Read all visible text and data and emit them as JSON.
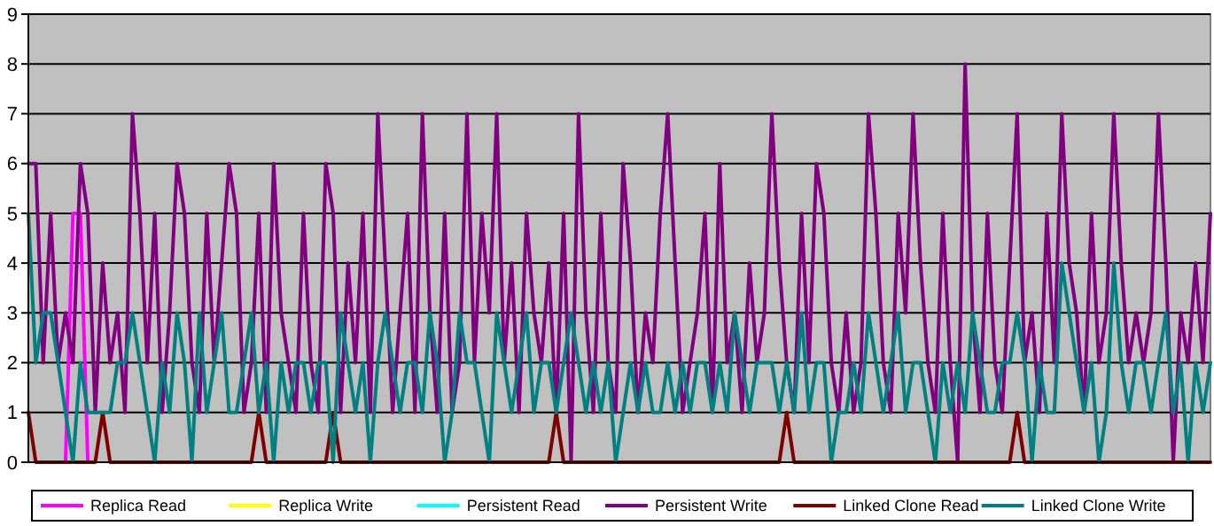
{
  "chart_data": {
    "type": "line",
    "categories": [
      null,
      null,
      null,
      null,
      null,
      null,
      null,
      null,
      null,
      null,
      null,
      null,
      null,
      null,
      null,
      null,
      null,
      null,
      null,
      null,
      null,
      null,
      null,
      null,
      null,
      null,
      null,
      null,
      null,
      null,
      null,
      null,
      null,
      null,
      null,
      null,
      null,
      null,
      null,
      null,
      null,
      null,
      null,
      null,
      null,
      null,
      null,
      null,
      null,
      null,
      null,
      null,
      null,
      null,
      null,
      null,
      null,
      null,
      null,
      null,
      null,
      null,
      null,
      null,
      null,
      null,
      null,
      null,
      null,
      null,
      null,
      null,
      null,
      null,
      null,
      null,
      null,
      null,
      null,
      null,
      null,
      null,
      null,
      null,
      null,
      null,
      null,
      null,
      null,
      null,
      null,
      null,
      null,
      null,
      null,
      null,
      null,
      null,
      null,
      null,
      null,
      null,
      null,
      null,
      null,
      null,
      null,
      null,
      null,
      null,
      null,
      null,
      null,
      null,
      null,
      null,
      null,
      null,
      null,
      null,
      null,
      null,
      null,
      null,
      null,
      null,
      null,
      null,
      null,
      null,
      null,
      null,
      null,
      null,
      null,
      null,
      null,
      null,
      null,
      null,
      null,
      null,
      null,
      null,
      null,
      null,
      null,
      null,
      null,
      null,
      null,
      null,
      null,
      null,
      null,
      null,
      null,
      null,
      null,
      null
    ],
    "ylim": [
      0,
      9
    ],
    "yticks": [
      0,
      1,
      2,
      3,
      4,
      5,
      6,
      7,
      8,
      9
    ],
    "grid": "y",
    "legend": "bottom",
    "tick_labels": "y",
    "series": [
      {
        "name": "Replica Read",
        "color": "#ff00ff",
        "values": [
          null,
          null,
          null,
          null,
          null,
          0,
          5,
          5,
          0,
          null,
          null,
          null,
          null,
          null,
          null,
          null,
          null,
          null,
          null,
          null,
          null,
          null,
          null,
          null,
          null,
          null,
          null,
          null,
          null,
          null,
          null,
          null,
          null,
          null,
          null,
          null,
          null,
          null,
          null,
          null,
          null,
          null,
          null,
          null,
          null,
          null,
          null,
          null,
          null,
          null,
          null,
          null,
          null,
          null,
          null,
          null,
          null,
          null,
          null,
          null,
          null,
          null,
          null,
          null,
          null,
          null,
          null,
          null,
          null,
          null,
          null,
          null,
          null,
          null,
          null,
          null,
          null,
          null,
          null,
          null,
          null,
          null,
          null,
          null,
          null,
          null,
          null,
          null,
          null,
          null,
          null,
          null,
          null,
          null,
          null,
          null,
          null,
          null,
          null,
          null,
          null,
          null,
          null,
          null,
          null,
          null,
          null,
          null,
          null,
          null,
          null,
          null,
          null,
          null,
          null,
          null,
          null,
          null,
          null,
          null,
          null,
          null,
          null,
          null,
          null,
          null,
          null,
          null,
          null,
          null,
          null,
          null,
          null,
          null,
          null,
          null,
          null,
          null,
          null,
          null,
          null,
          null,
          null,
          null,
          null,
          null,
          null,
          null,
          null,
          null,
          null,
          null,
          null,
          null,
          null,
          null,
          null,
          null,
          null,
          null
        ]
      },
      {
        "name": "Replica Write",
        "color": "#ffff00",
        "values": [
          null,
          null,
          null,
          null,
          null,
          null,
          null,
          null,
          null,
          null,
          null,
          null,
          null,
          null,
          null,
          null,
          null,
          null,
          null,
          null,
          null,
          null,
          null,
          null,
          null,
          null,
          null,
          null,
          null,
          null,
          null,
          null,
          null,
          null,
          null,
          null,
          null,
          null,
          null,
          null,
          null,
          null,
          null,
          null,
          null,
          null,
          null,
          null,
          null,
          null,
          null,
          null,
          null,
          null,
          null,
          null,
          null,
          null,
          null,
          null,
          null,
          null,
          null,
          null,
          null,
          null,
          null,
          null,
          null,
          null,
          null,
          null,
          null,
          null,
          null,
          null,
          null,
          null,
          null,
          null,
          null,
          null,
          null,
          null,
          null,
          null,
          null,
          null,
          null,
          null,
          null,
          null,
          null,
          null,
          null,
          null,
          null,
          null,
          null,
          null,
          null,
          null,
          null,
          null,
          null,
          null,
          null,
          null,
          null,
          null,
          null,
          null,
          null,
          null,
          null,
          null,
          null,
          null,
          null,
          null,
          null,
          null,
          null,
          null,
          null,
          null,
          null,
          null,
          null,
          null,
          null,
          null,
          null,
          null,
          null,
          null,
          null,
          null,
          null,
          null,
          null,
          null,
          null,
          null,
          null,
          null,
          null,
          null,
          null,
          null,
          null,
          null,
          null,
          null,
          null,
          null,
          null,
          null,
          null,
          null
        ]
      },
      {
        "name": "Persistent Read",
        "color": "#00ffff",
        "values": [
          null,
          null,
          null,
          null,
          null,
          null,
          null,
          null,
          null,
          null,
          null,
          null,
          null,
          null,
          null,
          null,
          null,
          null,
          null,
          null,
          null,
          null,
          null,
          null,
          null,
          null,
          null,
          null,
          null,
          null,
          null,
          null,
          null,
          null,
          null,
          null,
          null,
          null,
          null,
          null,
          null,
          null,
          null,
          null,
          null,
          null,
          null,
          null,
          null,
          null,
          null,
          null,
          null,
          null,
          null,
          null,
          null,
          null,
          null,
          null,
          null,
          null,
          null,
          null,
          null,
          null,
          null,
          null,
          null,
          null,
          null,
          null,
          null,
          null,
          null,
          null,
          null,
          null,
          null,
          null,
          null,
          null,
          null,
          null,
          null,
          null,
          null,
          null,
          null,
          null,
          null,
          null,
          null,
          null,
          null,
          null,
          null,
          null,
          null,
          null,
          null,
          null,
          null,
          null,
          null,
          null,
          null,
          null,
          null,
          null,
          null,
          null,
          null,
          null,
          null,
          null,
          null,
          null,
          null,
          null,
          null,
          null,
          null,
          null,
          null,
          null,
          null,
          null,
          null,
          null,
          null,
          null,
          null,
          null,
          null,
          null,
          null,
          null,
          null,
          null,
          null,
          null,
          null,
          null,
          null,
          null,
          null,
          null,
          null,
          null,
          null,
          null,
          null,
          null,
          null,
          null,
          null,
          null,
          null,
          null
        ]
      },
      {
        "name": "Persistent Write",
        "color": "#800080",
        "values": [
          6,
          6,
          2,
          5,
          2,
          3,
          2,
          6,
          5,
          1,
          4,
          2,
          3,
          1,
          7,
          5,
          2,
          5,
          1,
          3,
          6,
          5,
          2,
          1,
          5,
          2,
          4,
          6,
          5,
          1,
          2,
          5,
          1,
          6,
          3,
          2,
          1,
          5,
          2,
          1,
          6,
          5,
          1,
          4,
          2,
          5,
          1,
          7,
          4,
          1,
          3,
          5,
          1,
          7,
          3,
          1,
          5,
          1,
          2,
          7,
          2,
          5,
          3,
          7,
          2,
          4,
          1,
          5,
          3,
          2,
          4,
          1,
          5,
          0,
          7,
          3,
          1,
          5,
          2,
          1,
          6,
          4,
          1,
          3,
          2,
          5,
          7,
          4,
          1,
          2,
          3,
          5,
          1,
          6,
          2,
          3,
          1,
          4,
          2,
          3,
          7,
          4,
          2,
          1,
          5,
          2,
          6,
          5,
          2,
          1,
          3,
          1,
          2,
          7,
          5,
          2,
          1,
          5,
          3,
          7,
          4,
          2,
          1,
          5,
          2,
          0,
          8,
          3,
          1,
          5,
          2,
          1,
          4,
          7,
          2,
          3,
          1,
          5,
          2,
          7,
          4,
          3,
          1,
          5,
          2,
          3,
          7,
          4,
          2,
          3,
          2,
          3,
          7,
          4,
          0,
          3,
          2,
          4,
          2,
          5
        ]
      },
      {
        "name": "Linked Clone Read",
        "color": "#800000",
        "values": [
          1,
          0,
          0,
          0,
          0,
          0,
          0,
          0,
          0,
          0,
          1,
          0,
          0,
          0,
          0,
          0,
          0,
          0,
          0,
          0,
          0,
          0,
          0,
          0,
          0,
          0,
          0,
          0,
          0,
          0,
          0,
          1,
          0,
          0,
          0,
          0,
          0,
          0,
          0,
          0,
          0,
          1,
          0,
          0,
          0,
          0,
          0,
          0,
          0,
          0,
          0,
          0,
          0,
          0,
          0,
          0,
          0,
          0,
          0,
          0,
          0,
          0,
          0,
          0,
          0,
          0,
          0,
          0,
          0,
          0,
          0,
          1,
          0,
          0,
          0,
          0,
          0,
          0,
          0,
          0,
          0,
          0,
          0,
          0,
          0,
          0,
          0,
          0,
          0,
          0,
          0,
          0,
          0,
          0,
          0,
          0,
          0,
          0,
          0,
          0,
          0,
          0,
          1,
          0,
          0,
          0,
          0,
          0,
          0,
          0,
          0,
          0,
          0,
          0,
          0,
          0,
          0,
          0,
          0,
          0,
          0,
          0,
          0,
          0,
          0,
          0,
          0,
          0,
          0,
          0,
          0,
          0,
          0,
          1,
          0,
          0,
          0,
          0,
          0,
          0,
          0,
          0,
          0,
          0,
          0,
          0,
          0,
          0,
          0,
          0,
          0,
          0,
          0,
          0,
          0,
          0,
          0,
          0,
          0,
          0
        ]
      },
      {
        "name": "Linked Clone Write",
        "color": "#008080",
        "values": [
          5,
          2,
          3,
          3,
          2,
          1,
          0,
          2,
          1,
          1,
          1,
          1,
          2,
          2,
          3,
          2,
          1,
          0,
          2,
          1,
          3,
          2,
          0,
          3,
          1,
          2,
          3,
          1,
          1,
          2,
          3,
          1,
          2,
          0,
          2,
          1,
          2,
          2,
          1,
          2,
          2,
          0,
          3,
          2,
          1,
          2,
          0,
          2,
          3,
          2,
          1,
          2,
          2,
          1,
          3,
          2,
          0,
          1,
          3,
          2,
          2,
          1,
          0,
          3,
          2,
          1,
          2,
          3,
          1,
          2,
          2,
          1,
          2,
          3,
          2,
          1,
          2,
          1,
          2,
          0,
          1,
          2,
          1,
          2,
          1,
          1,
          2,
          1,
          2,
          1,
          2,
          2,
          1,
          2,
          1,
          3,
          2,
          1,
          2,
          2,
          2,
          1,
          2,
          1,
          3,
          1,
          2,
          2,
          0,
          1,
          1,
          2,
          1,
          3,
          2,
          1,
          2,
          3,
          1,
          2,
          2,
          1,
          0,
          2,
          1,
          2,
          1,
          3,
          2,
          1,
          1,
          2,
          2,
          3,
          2,
          0,
          2,
          1,
          1,
          4,
          3,
          2,
          1,
          2,
          0,
          1,
          4,
          2,
          1,
          2,
          2,
          1,
          2,
          3,
          1,
          2,
          0,
          2,
          1,
          2
        ]
      }
    ]
  }
}
